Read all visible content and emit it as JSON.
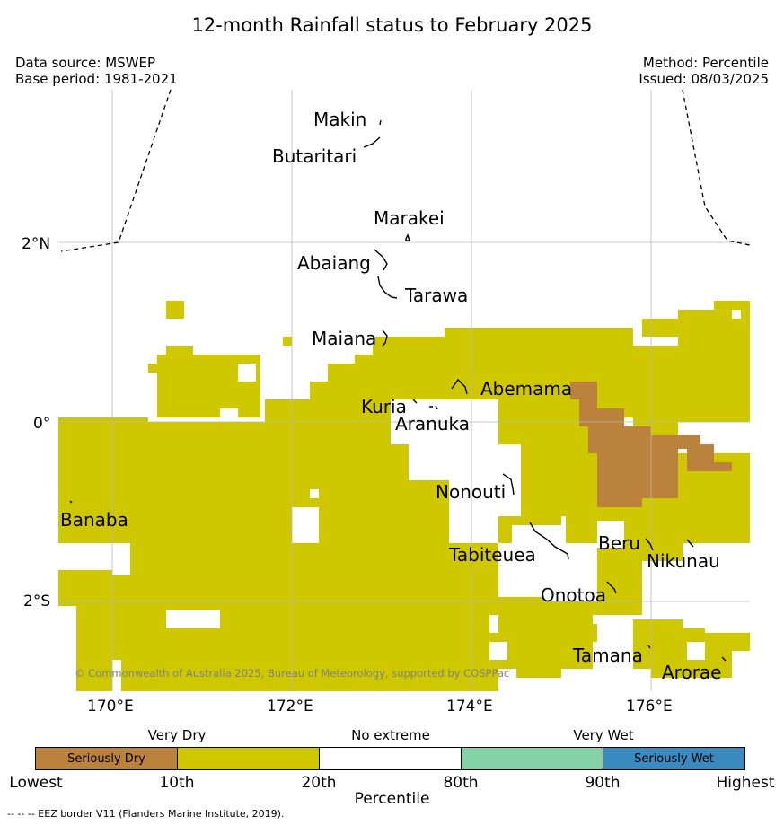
{
  "title": "12-month Rainfall status to February 2025",
  "header": {
    "data_source": "Data source: MSWEP",
    "base_period": "Base period: 1981-2021",
    "method": "Method: Percentile",
    "issued": "Issued: 08/03/2025"
  },
  "axes": {
    "lon_ticks": [
      "170°E",
      "172°E",
      "174°E",
      "176°E"
    ],
    "lat_ticks": [
      "2°N",
      "0°",
      "2°S"
    ]
  },
  "islands": [
    {
      "name": "Makin"
    },
    {
      "name": "Butaritari"
    },
    {
      "name": "Marakei"
    },
    {
      "name": "Abaiang"
    },
    {
      "name": "Tarawa"
    },
    {
      "name": "Maiana"
    },
    {
      "name": "Abemama"
    },
    {
      "name": "Kuria"
    },
    {
      "name": "Aranuka"
    },
    {
      "name": "Nonouti"
    },
    {
      "name": "Banaba"
    },
    {
      "name": "Beru"
    },
    {
      "name": "Nikunau"
    },
    {
      "name": "Tabiteuea"
    },
    {
      "name": "Onotoa"
    },
    {
      "name": "Tamana"
    },
    {
      "name": "Arorae"
    }
  ],
  "colors": {
    "seriously_dry": "#bb823d",
    "very_dry": "#cfc800",
    "no_extreme": "#ffffff",
    "very_wet": "#84d0a7",
    "seriously_wet": "#3a8abf"
  },
  "copyright": "© Commonwealth of Australia 2025, Bureau of Meteorology, supported by COSPPac",
  "legend": {
    "categories": [
      {
        "label": "Very Dry"
      },
      {
        "label": "No extreme"
      },
      {
        "label": "Very Wet"
      }
    ],
    "box_labels": [
      "Seriously Dry",
      "Seriously Wet"
    ],
    "ticks": [
      "Lowest",
      "10th",
      "20th",
      "80th",
      "90th",
      "Highest"
    ],
    "axis_label": "Percentile"
  },
  "footnote": "--  --  -- EEZ border V11 (Flanders Marine Institute, 2019)."
}
